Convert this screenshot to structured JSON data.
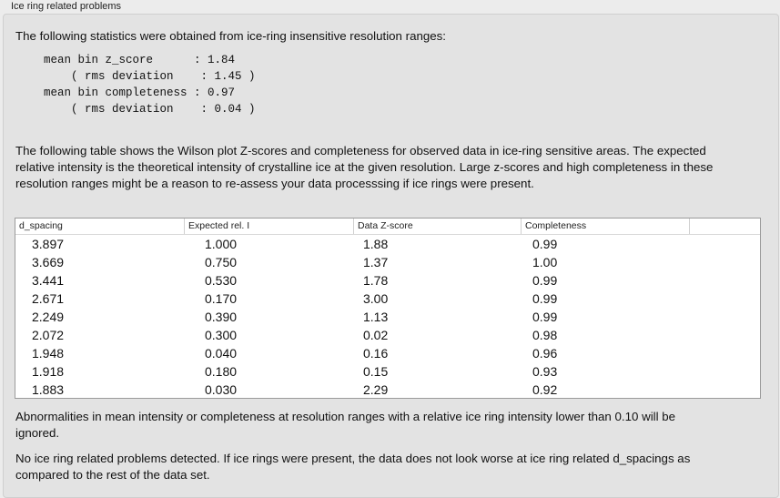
{
  "title": "Ice ring related problems",
  "intro": "The following statistics were obtained from ice-ring insensitive resolution ranges:",
  "stats": "mean bin z_score      : 1.84\n    ( rms deviation    : 1.45 )\nmean bin completeness : 0.97\n    ( rms deviation    : 0.04 )",
  "table_intro": "The following table shows the Wilson plot Z-scores and completeness for observed data in ice-ring sensitive areas. The expected relative intensity is the theoretical intensity of crystalline ice at the given resolution. Large z-scores and high completeness in these resolution ranges might be a reason to re-assess your data processsing if ice rings were present.",
  "table": {
    "columns": [
      "d_spacing",
      "Expected rel. I",
      "Data Z-score",
      "Completeness"
    ],
    "rows": [
      [
        "3.897",
        "1.000",
        "1.88",
        "0.99"
      ],
      [
        "3.669",
        "0.750",
        "1.37",
        "1.00"
      ],
      [
        "3.441",
        "0.530",
        "1.78",
        "0.99"
      ],
      [
        "2.671",
        "0.170",
        "3.00",
        "0.99"
      ],
      [
        "2.249",
        "0.390",
        "1.13",
        "0.99"
      ],
      [
        "2.072",
        "0.300",
        "0.02",
        "0.98"
      ],
      [
        "1.948",
        "0.040",
        "0.16",
        "0.96"
      ],
      [
        "1.918",
        "0.180",
        "0.15",
        "0.93"
      ],
      [
        "1.883",
        "0.030",
        "2.29",
        "0.92"
      ]
    ]
  },
  "note1": "Abnormalities in mean intensity or completeness at resolution ranges with a relative ice ring intensity lower than 0.10 will be ignored.",
  "note2": "No ice ring related problems detected. If ice rings were present, the data does not look worse at ice ring related d_spacings as compared to the rest of the data set."
}
